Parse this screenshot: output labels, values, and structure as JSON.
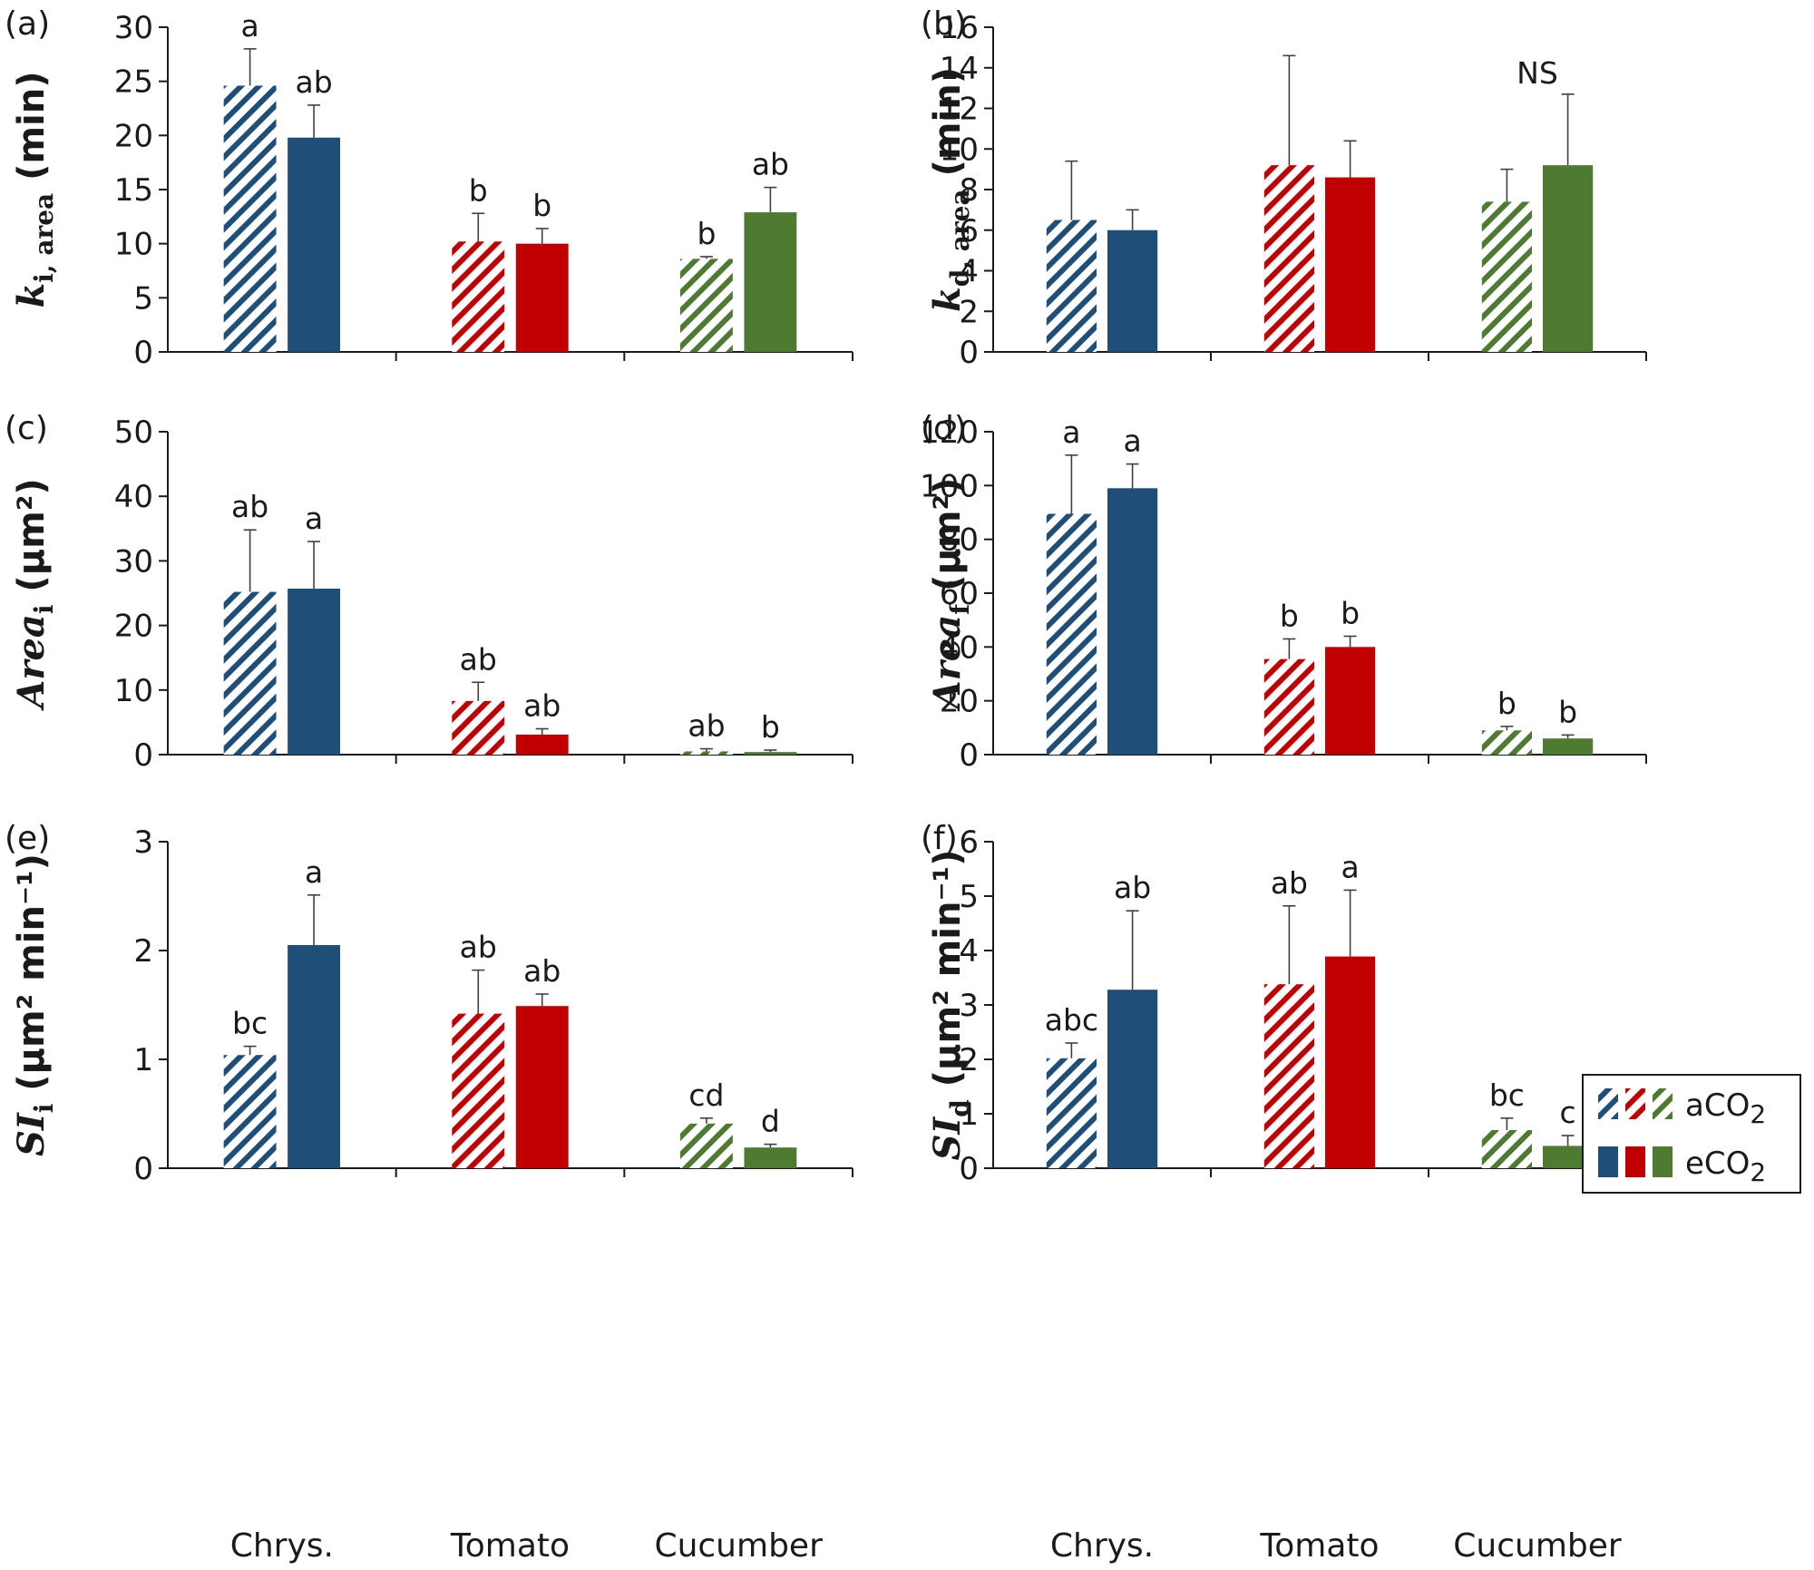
{
  "colors": {
    "Chrys.": "#1f4e79",
    "Tomato": "#c00000",
    "Cucumber": "#4e7a32"
  },
  "legend": {
    "ambient": {
      "main": "aCO",
      "sub": "2"
    },
    "elevated": {
      "main": "eCO",
      "sub": "2"
    }
  },
  "chart_data": [
    {
      "type": "bar",
      "panel": "(a)",
      "ylabel": {
        "main": "k",
        "sub": "i, area",
        "unit": " (min)"
      },
      "ylim": [
        0,
        30
      ],
      "yticks": [
        0,
        5,
        10,
        15,
        20,
        25,
        30
      ],
      "categories": [
        "Chrys.",
        "Tomato",
        "Cucumber"
      ],
      "series": [
        {
          "name": "aCO2",
          "style": "hatched",
          "values": [
            24.6,
            10.2,
            8.6
          ],
          "errors": [
            3.4,
            2.6,
            0.2
          ],
          "labels": [
            "a",
            "b",
            "b"
          ]
        },
        {
          "name": "eCO2",
          "style": "solid",
          "values": [
            19.8,
            10.0,
            12.9
          ],
          "errors": [
            3.0,
            1.4,
            2.3
          ],
          "labels": [
            "ab",
            "b",
            "ab"
          ]
        }
      ],
      "annotation": ""
    },
    {
      "type": "bar",
      "panel": "(b)",
      "ylabel": {
        "main": "k",
        "sub": "d, area",
        "unit": " (min)"
      },
      "ylim": [
        0,
        16
      ],
      "yticks": [
        0,
        2,
        4,
        6,
        8,
        10,
        12,
        14,
        16
      ],
      "categories": [
        "Chrys.",
        "Tomato",
        "Cucumber"
      ],
      "series": [
        {
          "name": "aCO2",
          "style": "hatched",
          "values": [
            6.5,
            9.2,
            7.4
          ],
          "errors": [
            2.9,
            5.4,
            1.6
          ],
          "labels": [
            "",
            "",
            ""
          ]
        },
        {
          "name": "eCO2",
          "style": "solid",
          "values": [
            6.0,
            8.6,
            9.2
          ],
          "errors": [
            1.0,
            1.8,
            3.5
          ],
          "labels": [
            "",
            "",
            ""
          ]
        }
      ],
      "annotation": "NS"
    },
    {
      "type": "bar",
      "panel": "(c)",
      "ylabel": {
        "main": "Area",
        "sub": "i",
        "unit": " (µm²)"
      },
      "ylim": [
        0,
        50
      ],
      "yticks": [
        0,
        10,
        20,
        30,
        40,
        50
      ],
      "categories": [
        "Chrys.",
        "Tomato",
        "Cucumber"
      ],
      "series": [
        {
          "name": "aCO2",
          "style": "hatched",
          "values": [
            25.2,
            8.3,
            0.5
          ],
          "errors": [
            9.6,
            2.9,
            0.4
          ],
          "labels": [
            "ab",
            "ab",
            "ab"
          ]
        },
        {
          "name": "eCO2",
          "style": "solid",
          "values": [
            25.7,
            3.1,
            0.4
          ],
          "errors": [
            7.3,
            0.9,
            0.3
          ],
          "labels": [
            "a",
            "ab",
            "b"
          ]
        }
      ],
      "annotation": ""
    },
    {
      "type": "bar",
      "panel": "(d)",
      "ylabel": {
        "main": "Area",
        "sub": "f",
        "unit": " (µm²)"
      },
      "ylim": [
        0,
        120
      ],
      "yticks": [
        0,
        20,
        40,
        60,
        80,
        100,
        120
      ],
      "categories": [
        "Chrys.",
        "Tomato",
        "Cucumber"
      ],
      "series": [
        {
          "name": "aCO2",
          "style": "hatched",
          "values": [
            89.5,
            35.5,
            9.0
          ],
          "errors": [
            21.8,
            7.5,
            1.5
          ],
          "labels": [
            "a",
            "b",
            "b"
          ]
        },
        {
          "name": "eCO2",
          "style": "solid",
          "values": [
            99.0,
            40.0,
            6.0
          ],
          "errors": [
            9.0,
            4.0,
            1.3
          ],
          "labels": [
            "a",
            "b",
            "b"
          ]
        }
      ],
      "annotation": ""
    },
    {
      "type": "bar",
      "panel": "(e)",
      "ylabel": {
        "main": "SI",
        "sub": "i",
        "unit": " (µm² min⁻¹)"
      },
      "ylim": [
        0,
        3
      ],
      "yticks": [
        0,
        1,
        2,
        3
      ],
      "categories": [
        "Chrys.",
        "Tomato",
        "Cucumber"
      ],
      "series": [
        {
          "name": "aCO2",
          "style": "hatched",
          "values": [
            1.04,
            1.42,
            0.41
          ],
          "errors": [
            0.08,
            0.4,
            0.05
          ],
          "labels": [
            "bc",
            "ab",
            "cd"
          ]
        },
        {
          "name": "eCO2",
          "style": "solid",
          "values": [
            2.05,
            1.49,
            0.19
          ],
          "errors": [
            0.46,
            0.11,
            0.03
          ],
          "labels": [
            "a",
            "ab",
            "d"
          ]
        }
      ],
      "annotation": ""
    },
    {
      "type": "bar",
      "panel": "(f)",
      "ylabel": {
        "main": "SI",
        "sub": "d",
        "unit": " (µm² min⁻¹)"
      },
      "ylim": [
        0,
        6
      ],
      "yticks": [
        0,
        1,
        2,
        3,
        4,
        5,
        6
      ],
      "categories": [
        "Chrys.",
        "Tomato",
        "Cucumber"
      ],
      "series": [
        {
          "name": "aCO2",
          "style": "hatched",
          "values": [
            2.02,
            3.38,
            0.7
          ],
          "errors": [
            0.28,
            1.44,
            0.22
          ],
          "labels": [
            "abc",
            "ab",
            "bc"
          ]
        },
        {
          "name": "eCO2",
          "style": "solid",
          "values": [
            3.28,
            3.89,
            0.41
          ],
          "errors": [
            1.45,
            1.22,
            0.19
          ],
          "labels": [
            "ab",
            "a",
            "c"
          ]
        }
      ],
      "annotation": ""
    }
  ]
}
